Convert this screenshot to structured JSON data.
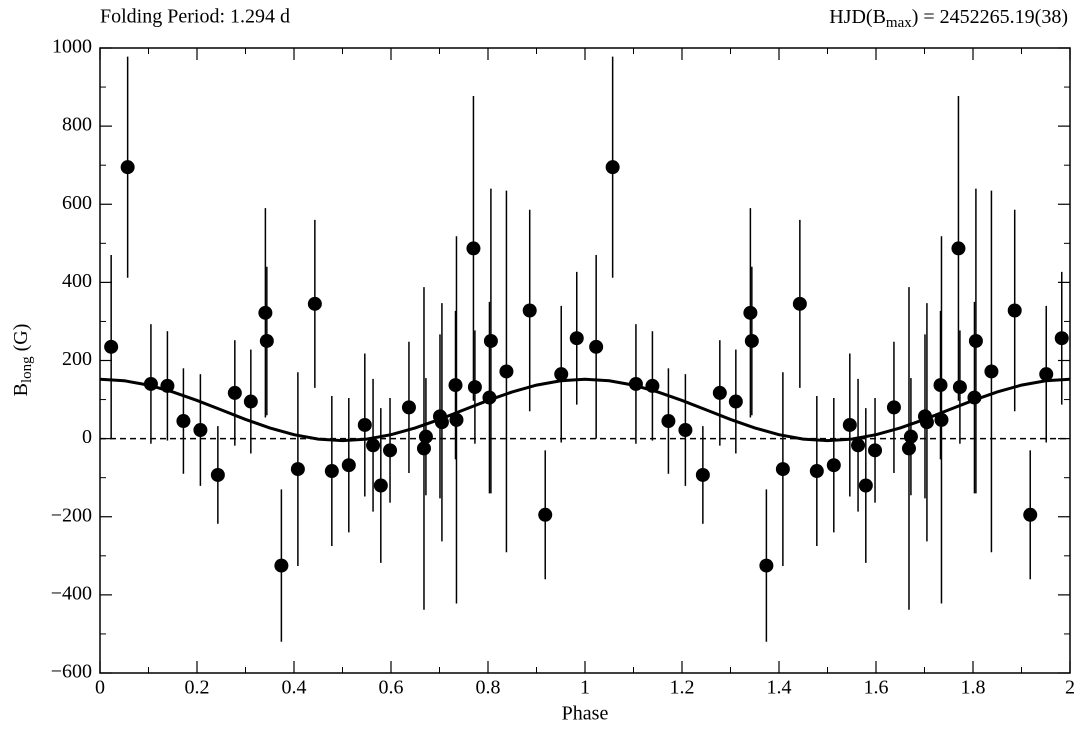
{
  "chart_data": {
    "type": "scatter",
    "title_left": "Folding Period: 1.294 d",
    "title_right": {
      "before": "HJD(B",
      "sub": "max",
      "after": ") = 2452265.19(38)"
    },
    "x_label": "Phase",
    "y_label": {
      "before": "B",
      "sub": "long",
      "after": " (G)"
    },
    "xlim": [
      0,
      2
    ],
    "ylim": [
      -600,
      1000
    ],
    "xticks": [
      0,
      0.2,
      0.4,
      0.6,
      0.8,
      1,
      1.2,
      1.4,
      1.6,
      1.8,
      2
    ],
    "yticks": [
      {
        "value": -600,
        "label": "−600"
      },
      {
        "value": -400,
        "label": "−400"
      },
      {
        "value": -200,
        "label": "−200"
      },
      0,
      200,
      400,
      600,
      800,
      1000
    ],
    "hline": 0,
    "color": "#000000",
    "points": {
      "x": [
        0.023,
        0.057,
        0.105,
        0.139,
        0.172,
        0.207,
        0.243,
        0.278,
        0.311,
        0.341,
        0.344,
        0.374,
        0.408,
        0.443,
        0.478,
        0.513,
        0.546,
        0.563,
        0.579,
        0.598,
        0.637,
        0.668,
        0.672,
        0.701,
        0.705,
        0.733,
        0.735,
        0.77,
        0.773,
        0.803,
        0.806,
        0.838,
        0.886,
        0.918,
        0.951,
        0.983,
        1.023,
        1.057,
        1.105,
        1.139,
        1.172,
        1.207,
        1.243,
        1.278,
        1.311,
        1.341,
        1.344,
        1.374,
        1.408,
        1.443,
        1.478,
        1.513,
        1.546,
        1.563,
        1.579,
        1.598,
        1.637,
        1.668,
        1.672,
        1.701,
        1.705,
        1.733,
        1.735,
        1.77,
        1.773,
        1.803,
        1.806,
        1.838,
        1.886,
        1.918,
        1.951,
        1.983
      ],
      "values": [
        235,
        695,
        140,
        135,
        45,
        22,
        -93,
        117,
        95,
        322,
        250,
        -325,
        -78,
        345,
        -83,
        -68,
        35,
        -17,
        -120,
        -30,
        80,
        -25,
        5,
        57,
        42,
        137,
        48,
        487,
        132,
        105,
        250,
        172,
        328,
        -195,
        165,
        257,
        235,
        695,
        140,
        135,
        45,
        22,
        -93,
        117,
        95,
        322,
        250,
        -325,
        -78,
        345,
        -83,
        -68,
        35,
        -17,
        -120,
        -30,
        80,
        -25,
        5,
        57,
        42,
        137,
        48,
        487,
        132,
        105,
        250,
        172,
        328,
        -195,
        165,
        257
      ],
      "errors": [
        235,
        283,
        153,
        140,
        135,
        143,
        125,
        135,
        133,
        268,
        190,
        195,
        248,
        215,
        192,
        172,
        183,
        170,
        198,
        134,
        168,
        413,
        150,
        210,
        305,
        190,
        470,
        390,
        145,
        245,
        390,
        463,
        258,
        165,
        175,
        170,
        235,
        283,
        153,
        140,
        135,
        143,
        125,
        135,
        133,
        268,
        190,
        195,
        248,
        215,
        192,
        172,
        183,
        170,
        198,
        134,
        168,
        413,
        150,
        210,
        305,
        190,
        470,
        390,
        145,
        245,
        390,
        463,
        258,
        165,
        175,
        170
      ]
    },
    "fit": {
      "x": [
        0,
        0.05,
        0.1,
        0.15,
        0.2,
        0.25,
        0.3,
        0.35,
        0.4,
        0.45,
        0.5,
        0.55,
        0.6,
        0.65,
        0.7,
        0.75,
        0.8,
        0.85,
        0.9,
        0.95,
        1,
        1.05,
        1.1,
        1.15,
        1.2,
        1.25,
        1.3,
        1.35,
        1.4,
        1.45,
        1.5,
        1.55,
        1.6,
        1.65,
        1.7,
        1.75,
        1.8,
        1.85,
        1.9,
        1.95,
        2
      ],
      "values": [
        152,
        148.2,
        137,
        119.6,
        97.8,
        73.5,
        49.2,
        27.4,
        10,
        -1.2,
        -5,
        -1.2,
        10,
        27.4,
        49.2,
        73.5,
        97.8,
        119.6,
        137,
        148.2,
        152,
        148.2,
        137,
        119.6,
        97.8,
        73.5,
        49.2,
        27.4,
        10,
        -1.2,
        -5,
        -1.2,
        10,
        27.4,
        49.2,
        73.5,
        97.8,
        119.6,
        137,
        148.2,
        152
      ]
    }
  }
}
